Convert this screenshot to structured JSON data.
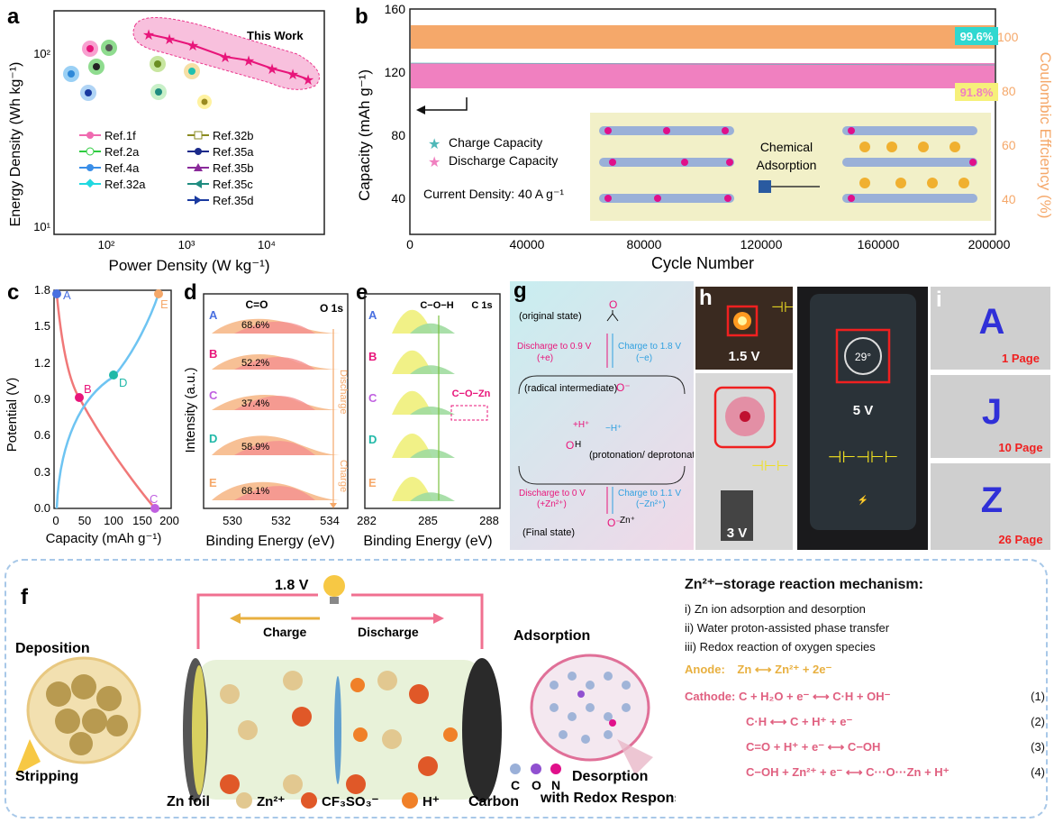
{
  "panel_a": {
    "letter": "a",
    "banner": "This Work",
    "y_axis": "Energy Density (Wh kg⁻¹)",
    "x_axis": "Power Density (W kg⁻¹)",
    "y_ticks": [
      "10¹",
      "10²"
    ],
    "x_ticks": [
      "10²",
      "10³",
      "10⁴"
    ],
    "legend_left": [
      "Ref.1f",
      "Ref.2a",
      "Ref.4a",
      "Ref.32a"
    ],
    "legend_right": [
      "Ref.32b",
      "Ref.35a",
      "Ref.35b",
      "Ref.35c",
      "Ref.35d"
    ],
    "colors": {
      "this_work": "#e8157a",
      "band": "#f7b6d8"
    }
  },
  "panel_b": {
    "letter": "b",
    "y_left": "Capacity (mAh g⁻¹)",
    "y_right": "Coulombic Effciency (%)",
    "x_axis": "Cycle Number",
    "y_left_ticks": [
      "40",
      "80",
      "120",
      "160"
    ],
    "y_right_ticks": [
      "40",
      "60",
      "80",
      "100"
    ],
    "x_ticks": [
      "0",
      "40000",
      "80000",
      "120000",
      "160000",
      "200000"
    ],
    "ce_badge": "99.6%",
    "retention_badge": "91.8%",
    "legend": [
      "Charge Capacity",
      "Discharge Capacity"
    ],
    "current_density": "Current Density: 40 A g⁻¹",
    "inset_label": "Chemical Adsorption",
    "colors": {
      "ce": "#f5a86a",
      "discharge": "#f080c0",
      "charge": "#4fb8b8"
    }
  },
  "panel_c": {
    "letter": "c",
    "y_axis": "Potential (V)",
    "x_axis": "Capacity (mAh g⁻¹)",
    "y_ticks": [
      "0.0",
      "0.3",
      "0.6",
      "0.9",
      "1.2",
      "1.5",
      "1.8"
    ],
    "x_ticks": [
      "0",
      "50",
      "100",
      "150",
      "200"
    ],
    "points": [
      "A",
      "B",
      "C",
      "D",
      "E"
    ]
  },
  "panel_d": {
    "letter": "d",
    "title": "C=O",
    "subtitle": "O 1s",
    "y_axis": "Intensity (a.u.)",
    "x_axis": "Binding Energy (eV)",
    "x_ticks": [
      "530",
      "532",
      "534"
    ],
    "rows": [
      {
        "label": "A",
        "pct": "68.6%"
      },
      {
        "label": "B",
        "pct": "52.2%"
      },
      {
        "label": "C",
        "pct": "37.4%"
      },
      {
        "label": "D",
        "pct": "58.9%"
      },
      {
        "label": "E",
        "pct": "68.1%"
      }
    ],
    "discharge": "Discharge",
    "charge": "Charge"
  },
  "panel_e": {
    "letter": "e",
    "title": "C−O−H",
    "subtitle": "C 1s",
    "x_axis": "Binding Energy (eV)",
    "x_ticks": [
      "282",
      "285",
      "288"
    ],
    "rows": [
      "A",
      "B",
      "C",
      "D",
      "E"
    ],
    "annotation": "C−O−Zn"
  },
  "panel_g": {
    "letter": "g",
    "original": "(original state)",
    "discharge1": "Discharge to 0.9 V",
    "discharge1b": "(+e)",
    "charge1": "Charge to 1.8 V",
    "charge1b": "(−e)",
    "radical": "(radical intermediate)",
    "hplus": "+H⁺",
    "hminus": "−H⁺",
    "protonation": "(protonation/ deprotonation)",
    "discharge2": "Discharge to 0 V",
    "discharge2b": "(+Zn²⁺)",
    "charge2": "Charge to 1.1 V",
    "charge2b": "(−Zn²⁺)",
    "final": "(Final state)"
  },
  "panel_h": {
    "letter": "h",
    "v1": "1.5 V",
    "v2": "3 V"
  },
  "panel_phone": {
    "temp": "29°",
    "voltage": "5 V"
  },
  "panel_i": {
    "letter": "i",
    "cards": [
      {
        "char": "A",
        "page": "1 Page"
      },
      {
        "char": "J",
        "page": "10 Page"
      },
      {
        "char": "Z",
        "page": "26 Page"
      }
    ]
  },
  "panel_f": {
    "letter": "f",
    "voltage": "1.8 V",
    "charge": "Charge",
    "discharge": "Discharge",
    "deposition": "Deposition",
    "stripping": "Stripping",
    "adsorption": "Adsorption",
    "desorption": "Desorption",
    "desorption2": "with Redox Response",
    "zn_foil": "Zn foil",
    "carbon": "Carbon",
    "species": [
      "Zn²⁺",
      "CF₃SO₃⁻",
      "H⁺"
    ],
    "elements": [
      "C",
      "O",
      "N"
    ],
    "mech_title": "Zn²⁺−storage reaction mechanism:",
    "mech_items": [
      "i) Zn ion adsorption and desorption",
      "ii) Water proton-assisted phase transfer",
      "iii) Redox reaction of oxygen species"
    ],
    "anode_label": "Anode:",
    "anode_eq": "Zn ⟷ Zn²⁺ + 2e⁻",
    "cathode_label": "Cathode:",
    "eqs": [
      {
        "eq": "C + H₂O + e⁻ ⟷ C·H + OH⁻",
        "n": "(1)"
      },
      {
        "eq": "C·H ⟷ C + H⁺ + e⁻",
        "n": "(2)"
      },
      {
        "eq": "C=O + H⁺ + e⁻ ⟷ C−OH",
        "n": "(3)"
      },
      {
        "eq": "C−OH + Zn²⁺ + e⁻ ⟷ C···O···Zn + H⁺",
        "n": "(4)"
      }
    ]
  }
}
